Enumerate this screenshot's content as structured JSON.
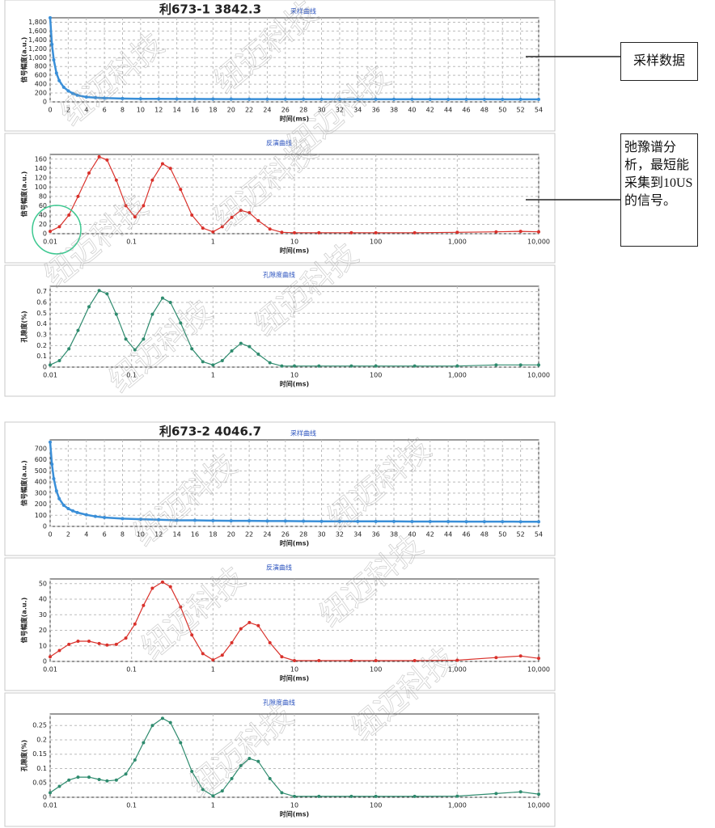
{
  "chart_data": [
    {
      "type": "line",
      "title": "利673-1 3842.3",
      "subtitle": "采样曲线",
      "xlabel": "时间(ms)",
      "ylabel": "信号幅度(a.u.)",
      "x": [
        0,
        0.2,
        0.4,
        0.7,
        1,
        1.5,
        2,
        2.5,
        3,
        4,
        5,
        6,
        8,
        10,
        12,
        14,
        16,
        18,
        20,
        22,
        24,
        26,
        28,
        30,
        32,
        34,
        36,
        38,
        40,
        42,
        44,
        46,
        48,
        50,
        52,
        54
      ],
      "values": [
        1900,
        1300,
        950,
        650,
        480,
        330,
        250,
        190,
        150,
        110,
        95,
        85,
        75,
        70,
        68,
        66,
        65,
        64,
        63,
        62,
        62,
        61,
        61,
        60,
        60,
        60,
        59,
        59,
        59,
        58,
        58,
        58,
        58,
        57,
        57,
        57
      ],
      "color": "#3a8fd8",
      "xlim": [
        0,
        54
      ],
      "xticks": [
        0,
        2,
        4,
        6,
        8,
        10,
        12,
        14,
        16,
        18,
        20,
        22,
        24,
        26,
        28,
        30,
        32,
        34,
        36,
        38,
        40,
        42,
        44,
        46,
        48,
        50,
        52,
        54
      ],
      "ylim": [
        0,
        1900
      ],
      "yticks": [
        0,
        200,
        400,
        600,
        800,
        {
          "value": 1000,
          "label": "1,000"
        },
        {
          "value": 1200,
          "label": "1,200"
        },
        {
          "value": 1400,
          "label": "1,400"
        },
        {
          "value": 1600,
          "label": "1,600"
        },
        {
          "value": 1800,
          "label": "1,800"
        }
      ],
      "grid": true
    },
    {
      "type": "line",
      "subtitle": "反演曲线",
      "xlabel": "时间(ms)",
      "ylabel": "信号幅度(a.u.)",
      "xscale": "log",
      "x": [
        0.01,
        0.013,
        0.017,
        0.022,
        0.03,
        0.04,
        0.05,
        0.065,
        0.085,
        0.11,
        0.14,
        0.18,
        0.24,
        0.3,
        0.4,
        0.55,
        0.75,
        1,
        1.3,
        1.7,
        2.2,
        2.8,
        3.6,
        5,
        7,
        10,
        20,
        50,
        100,
        300,
        1000,
        3000,
        6000,
        10000
      ],
      "values": [
        5,
        15,
        40,
        80,
        130,
        165,
        158,
        115,
        60,
        36,
        60,
        115,
        150,
        140,
        95,
        40,
        12,
        4,
        15,
        35,
        50,
        45,
        28,
        10,
        3,
        2,
        2,
        2,
        2,
        2,
        3,
        4,
        5,
        4
      ],
      "color": "#d9312b",
      "xlim": [
        0.01,
        10000
      ],
      "xticks": [
        0.01,
        0.1,
        1,
        10,
        100,
        {
          "value": 1000,
          "label": "1,000"
        },
        {
          "value": 10000,
          "label": "10,000"
        }
      ],
      "ylim": [
        0,
        170
      ],
      "yticks": [
        0,
        20,
        40,
        60,
        80,
        100,
        120,
        140,
        160
      ],
      "grid": true
    },
    {
      "type": "line",
      "subtitle": "孔隙度曲线",
      "xlabel": "时间(ms)",
      "ylabel": "孔隙度(%)",
      "xscale": "log",
      "x": [
        0.01,
        0.013,
        0.017,
        0.022,
        0.03,
        0.04,
        0.05,
        0.065,
        0.085,
        0.11,
        0.14,
        0.18,
        0.24,
        0.3,
        0.4,
        0.55,
        0.75,
        1,
        1.3,
        1.7,
        2.2,
        2.8,
        3.6,
        5,
        7,
        10,
        20,
        50,
        100,
        300,
        1000,
        3000,
        6000,
        10000
      ],
      "values": [
        0.02,
        0.06,
        0.17,
        0.34,
        0.56,
        0.71,
        0.68,
        0.49,
        0.26,
        0.16,
        0.26,
        0.49,
        0.64,
        0.6,
        0.41,
        0.17,
        0.05,
        0.02,
        0.06,
        0.15,
        0.22,
        0.19,
        0.12,
        0.04,
        0.01,
        0.01,
        0.01,
        0.01,
        0.01,
        0.01,
        0.01,
        0.02,
        0.02,
        0.02
      ],
      "color": "#2e8b6e",
      "xlim": [
        0.01,
        10000
      ],
      "xticks": [
        0.01,
        0.1,
        1,
        10,
        100,
        {
          "value": 1000,
          "label": "1,000"
        },
        {
          "value": 10000,
          "label": "10,000"
        }
      ],
      "ylim": [
        0,
        0.75
      ],
      "yticks": [
        0,
        0.1,
        0.2,
        0.3,
        0.4,
        0.5,
        0.6,
        0.7
      ],
      "grid": true
    },
    {
      "type": "line",
      "title": "利673-2 4046.7",
      "subtitle": "采样曲线",
      "xlabel": "时间(ms)",
      "ylabel": "信号幅度(a.u.)",
      "x": [
        0,
        0.2,
        0.4,
        0.7,
        1,
        1.5,
        2,
        2.5,
        3,
        4,
        5,
        6,
        8,
        10,
        12,
        14,
        16,
        18,
        20,
        22,
        24,
        26,
        28,
        30,
        32,
        34,
        36,
        38,
        40,
        42,
        44,
        46,
        48,
        50,
        52,
        54
      ],
      "values": [
        760,
        560,
        430,
        320,
        250,
        190,
        160,
        140,
        125,
        105,
        90,
        80,
        70,
        65,
        60,
        55,
        55,
        52,
        50,
        50,
        48,
        48,
        47,
        46,
        46,
        45,
        45,
        45,
        44,
        44,
        44,
        43,
        43,
        43,
        42,
        42
      ],
      "color": "#3a8fd8",
      "xlim": [
        0,
        54
      ],
      "xticks": [
        0,
        2,
        4,
        6,
        8,
        10,
        12,
        14,
        16,
        18,
        20,
        22,
        24,
        26,
        28,
        30,
        32,
        34,
        36,
        38,
        40,
        42,
        44,
        46,
        48,
        50,
        52,
        54
      ],
      "ylim": [
        0,
        780
      ],
      "yticks": [
        0,
        100,
        200,
        300,
        400,
        500,
        600,
        700
      ],
      "grid": true
    },
    {
      "type": "line",
      "subtitle": "反演曲线",
      "xlabel": "时间(ms)",
      "ylabel": "信号幅度(a.u.)",
      "xscale": "log",
      "x": [
        0.01,
        0.013,
        0.017,
        0.022,
        0.03,
        0.04,
        0.05,
        0.065,
        0.085,
        0.11,
        0.14,
        0.18,
        0.24,
        0.3,
        0.4,
        0.55,
        0.75,
        1,
        1.3,
        1.7,
        2.2,
        2.8,
        3.6,
        5,
        7,
        10,
        20,
        50,
        100,
        300,
        1000,
        3000,
        6000,
        10000
      ],
      "values": [
        3,
        7,
        11,
        13,
        13,
        11.5,
        10.5,
        11,
        15,
        24,
        36,
        47,
        51,
        48,
        35,
        17,
        5,
        1,
        4,
        12,
        21,
        25,
        23,
        12,
        3,
        0.5,
        0.5,
        0.5,
        0.5,
        0.5,
        0.8,
        2.5,
        3.5,
        2
      ],
      "color": "#d9312b",
      "xlim": [
        0.01,
        10000
      ],
      "xticks": [
        0.01,
        0.1,
        1,
        10,
        100,
        {
          "value": 1000,
          "label": "1,000"
        },
        {
          "value": 10000,
          "label": "10,000"
        }
      ],
      "ylim": [
        0,
        53
      ],
      "yticks": [
        0,
        10,
        20,
        30,
        40,
        50
      ],
      "grid": true
    },
    {
      "type": "line",
      "subtitle": "孔隙度曲线",
      "xlabel": "时间(ms)",
      "ylabel": "孔隙度(%)",
      "xscale": "log",
      "x": [
        0.01,
        0.013,
        0.017,
        0.022,
        0.03,
        0.04,
        0.05,
        0.065,
        0.085,
        0.11,
        0.14,
        0.18,
        0.24,
        0.3,
        0.4,
        0.55,
        0.75,
        1,
        1.3,
        1.7,
        2.2,
        2.8,
        3.6,
        5,
        7,
        10,
        20,
        50,
        100,
        300,
        1000,
        3000,
        6000,
        10000
      ],
      "values": [
        0.016,
        0.038,
        0.06,
        0.07,
        0.07,
        0.062,
        0.057,
        0.06,
        0.081,
        0.13,
        0.19,
        0.25,
        0.275,
        0.26,
        0.19,
        0.09,
        0.027,
        0.005,
        0.022,
        0.065,
        0.11,
        0.135,
        0.125,
        0.065,
        0.016,
        0.003,
        0.003,
        0.003,
        0.003,
        0.003,
        0.004,
        0.013,
        0.019,
        0.011
      ],
      "color": "#2e8b6e",
      "xlim": [
        0.01,
        10000
      ],
      "xticks": [
        0.01,
        0.1,
        1,
        10,
        100,
        {
          "value": 1000,
          "label": "1,000"
        },
        {
          "value": 10000,
          "label": "10,000"
        }
      ],
      "ylim": [
        0,
        0.29
      ],
      "yticks": [
        0,
        0.05,
        0.1,
        0.15,
        0.2,
        0.25
      ],
      "grid": true
    }
  ],
  "callouts": [
    "采样数据",
    "弛豫谱分析，最短能采集到10US的信号。"
  ],
  "watermark": "纽迈科技"
}
